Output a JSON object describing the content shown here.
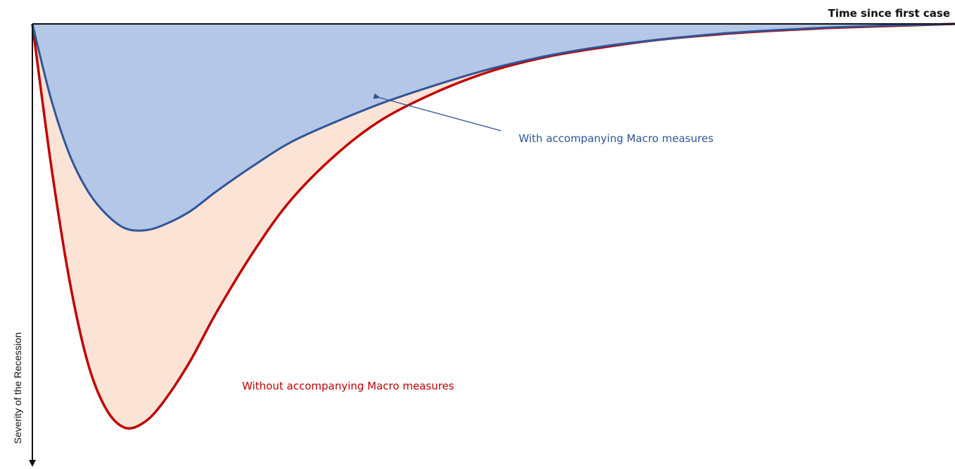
{
  "chart_data": {
    "type": "area",
    "xlabel": "Time since first case",
    "ylabel": "Severity of the Recession",
    "axes": {
      "x_position": "top",
      "y_direction": "downward",
      "ticks": false,
      "grid": false
    },
    "series": [
      {
        "name": "Without accompanying Macro measures",
        "color": "#c00000",
        "fill": "#fbe3d6",
        "points": [
          [
            0,
            0
          ],
          [
            0.02,
            3.0
          ],
          [
            0.04,
            5.5
          ],
          [
            0.06,
            7.3
          ],
          [
            0.08,
            8.3
          ],
          [
            0.1,
            8.7
          ],
          [
            0.12,
            8.6
          ],
          [
            0.14,
            8.2
          ],
          [
            0.17,
            7.3
          ],
          [
            0.2,
            6.2
          ],
          [
            0.24,
            4.9
          ],
          [
            0.28,
            3.8
          ],
          [
            0.33,
            2.8
          ],
          [
            0.38,
            2.05
          ],
          [
            0.44,
            1.45
          ],
          [
            0.5,
            1.0
          ],
          [
            0.56,
            0.7
          ],
          [
            0.62,
            0.5
          ],
          [
            0.68,
            0.34
          ],
          [
            0.74,
            0.23
          ],
          [
            0.8,
            0.15
          ],
          [
            0.86,
            0.09
          ],
          [
            0.92,
            0.05
          ],
          [
            1.0,
            0.0
          ]
        ]
      },
      {
        "name": "With accompanying Macro measures",
        "color": "#2f5597",
        "fill": "#b4c7e7",
        "points": [
          [
            0,
            0
          ],
          [
            0.02,
            1.6
          ],
          [
            0.04,
            2.8
          ],
          [
            0.06,
            3.6
          ],
          [
            0.08,
            4.1
          ],
          [
            0.1,
            4.4
          ],
          [
            0.12,
            4.45
          ],
          [
            0.14,
            4.35
          ],
          [
            0.17,
            4.05
          ],
          [
            0.2,
            3.6
          ],
          [
            0.24,
            3.05
          ],
          [
            0.28,
            2.55
          ],
          [
            0.33,
            2.1
          ],
          [
            0.38,
            1.7
          ],
          [
            0.44,
            1.3
          ],
          [
            0.5,
            0.95
          ],
          [
            0.56,
            0.68
          ],
          [
            0.62,
            0.48
          ],
          [
            0.68,
            0.34
          ],
          [
            0.74,
            0.22
          ],
          [
            0.8,
            0.14
          ],
          [
            0.86,
            0.08
          ],
          [
            0.92,
            0.04
          ],
          [
            1.0,
            0.0
          ]
        ]
      }
    ],
    "annotations": [
      {
        "text": "With accompanying Macro measures",
        "color": "#2f5597",
        "arrow": true
      },
      {
        "text": "Without accompanying Macro measures",
        "color": "#c00000",
        "arrow": false
      }
    ]
  }
}
